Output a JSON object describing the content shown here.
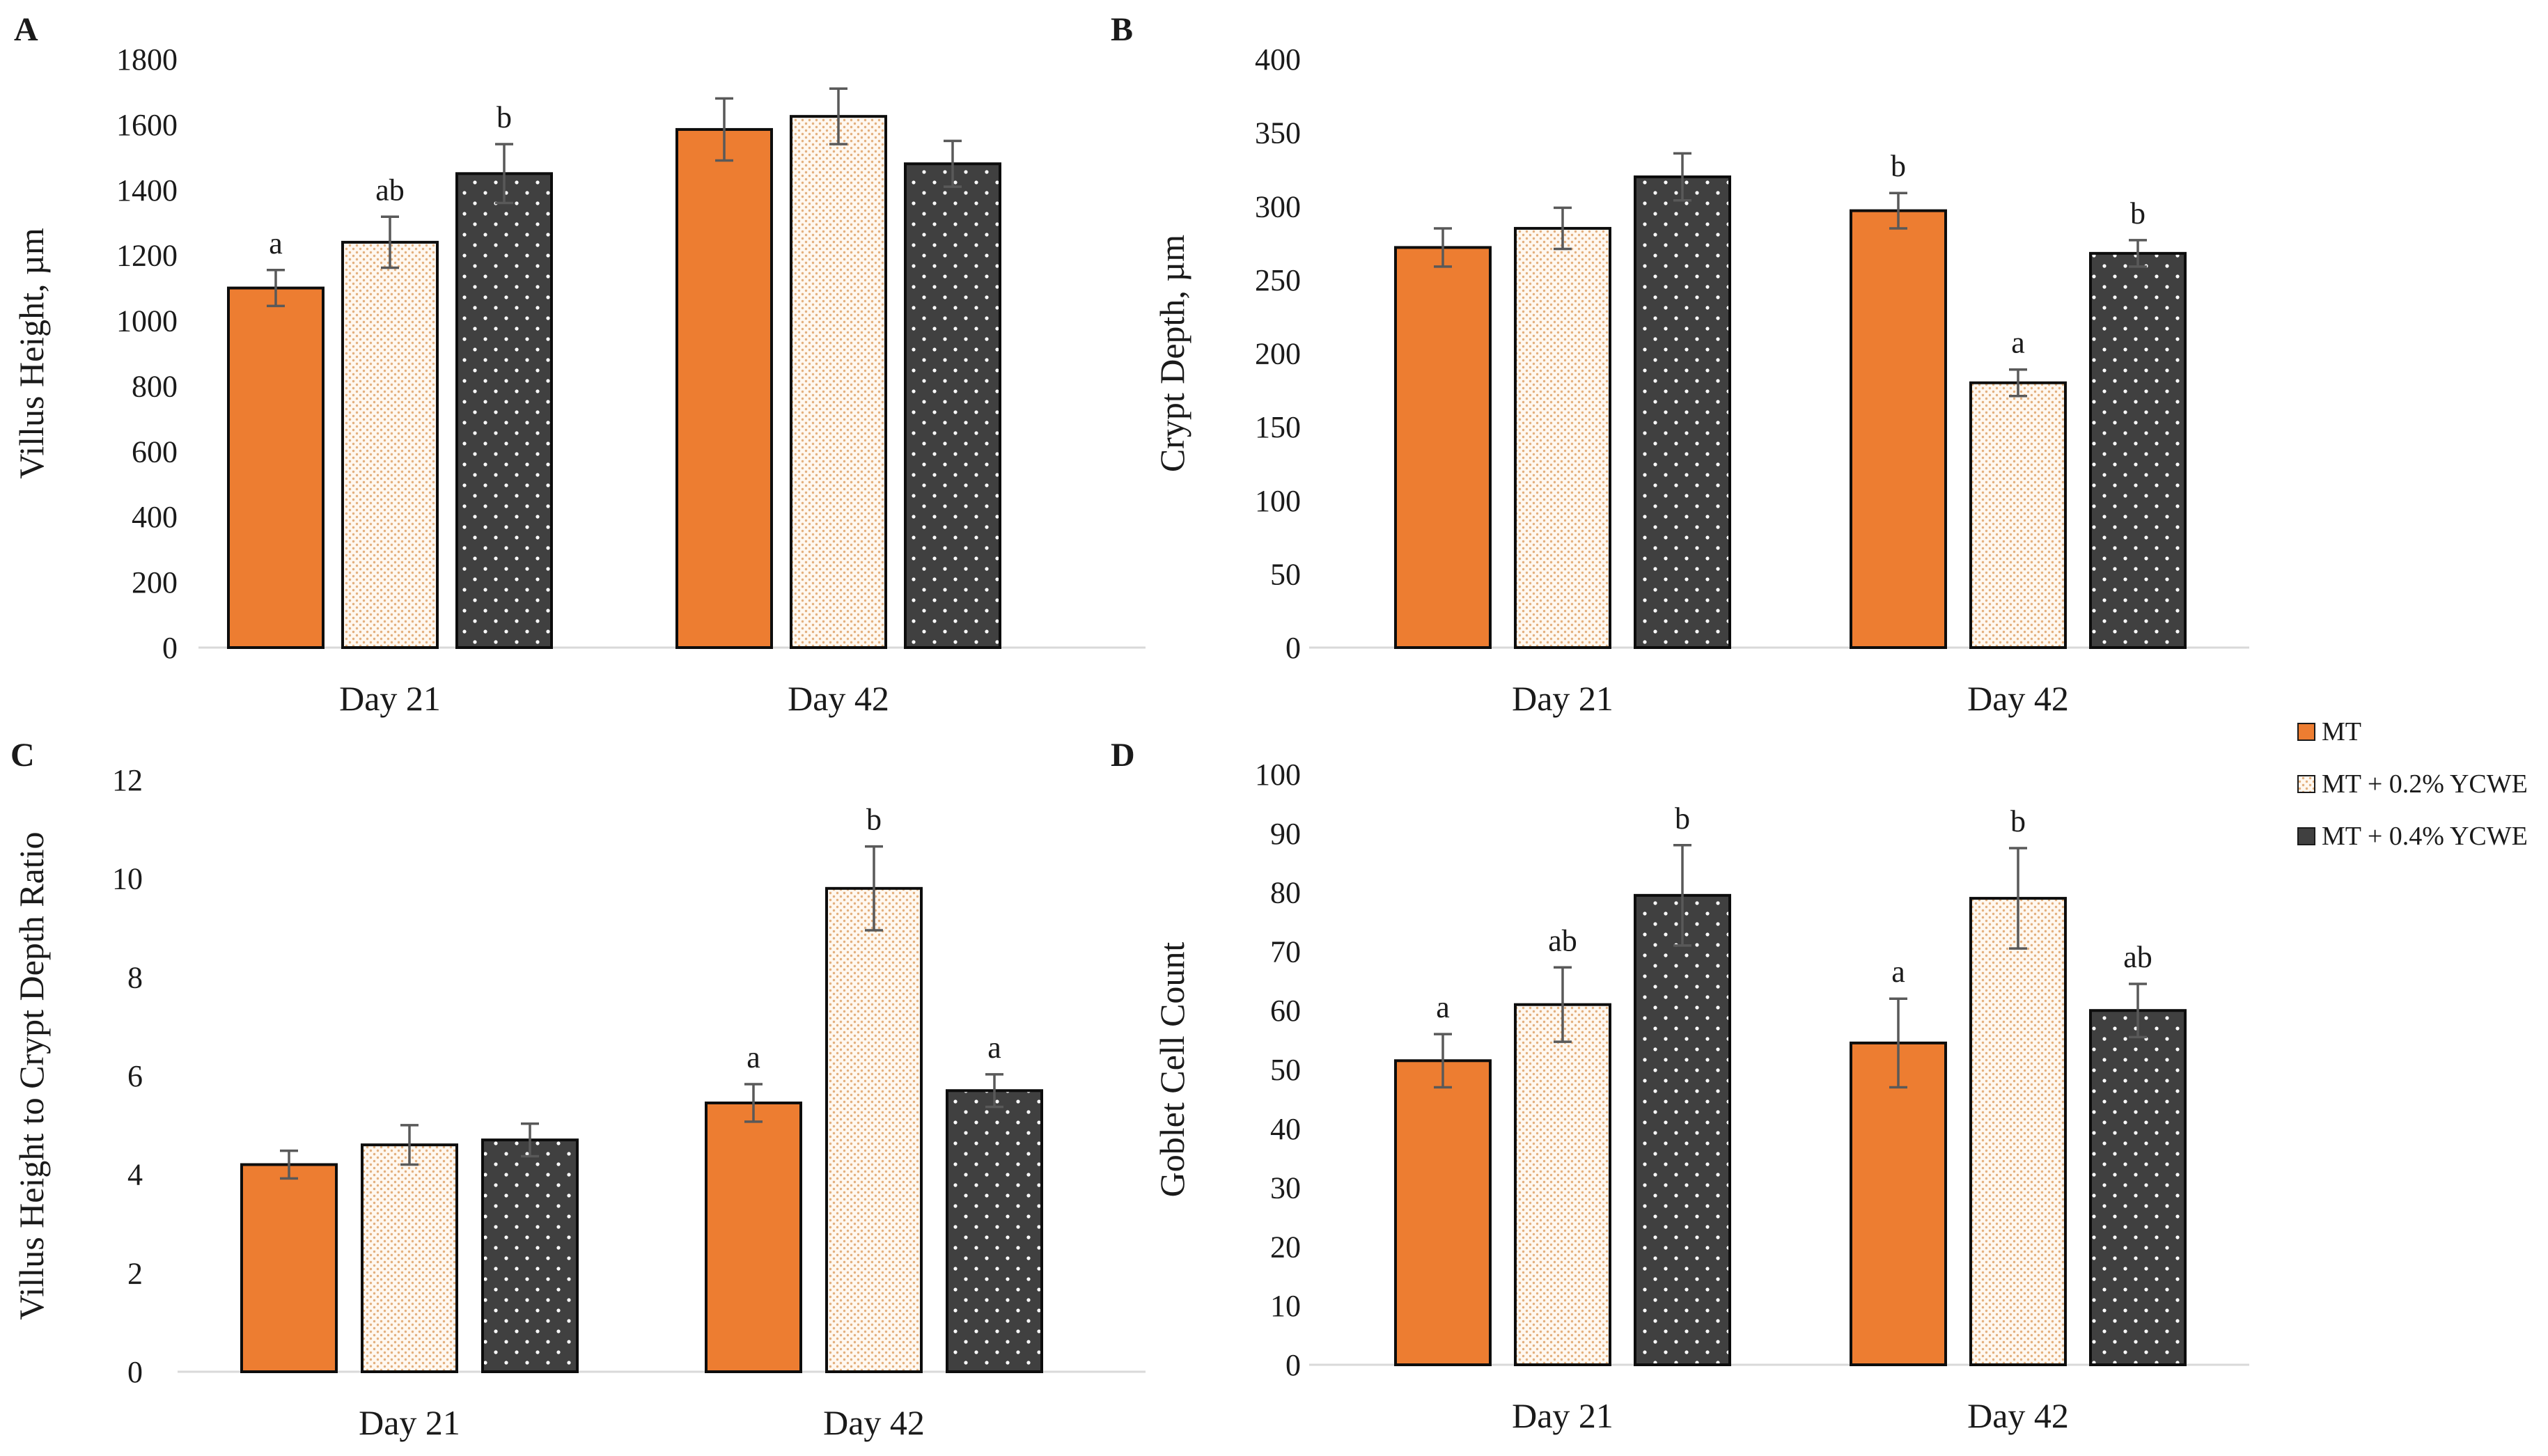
{
  "colors": {
    "mt": "#ED7D31",
    "ycwe02_fill": "#FFF8F0",
    "ycwe02_dot": "#E3B07E",
    "ycwe04": "#404040",
    "axis": "#D9D9D9",
    "error": "#595959"
  },
  "legend": {
    "items": [
      "MT",
      "MT + 0.2% YCWE",
      "MT + 0.4% YCWE"
    ]
  },
  "chart_data": [
    {
      "type": "bar",
      "panel": "A",
      "ylabel": "Villus Height, µm",
      "ylim": [
        0,
        1800
      ],
      "yticks": [
        0,
        200,
        400,
        600,
        800,
        1000,
        1200,
        1400,
        1600,
        1800
      ],
      "categories": [
        "Day 21",
        "Day 42"
      ],
      "series": [
        {
          "name": "MT",
          "values": [
            1100,
            1585
          ],
          "errors": [
            55,
            95
          ],
          "labels": [
            "a",
            ""
          ]
        },
        {
          "name": "MT + 0.2% YCWE",
          "values": [
            1240,
            1625
          ],
          "errors": [
            78,
            85
          ],
          "labels": [
            "ab",
            ""
          ]
        },
        {
          "name": "MT + 0.4% YCWE",
          "values": [
            1450,
            1480
          ],
          "errors": [
            90,
            70
          ],
          "labels": [
            "b",
            ""
          ]
        }
      ]
    },
    {
      "type": "bar",
      "panel": "B",
      "ylabel": "Crypt Depth, µm",
      "ylim": [
        0,
        400
      ],
      "yticks": [
        0,
        50,
        100,
        150,
        200,
        250,
        300,
        350,
        400
      ],
      "categories": [
        "Day 21",
        "Day 42"
      ],
      "series": [
        {
          "name": "MT",
          "values": [
            272,
            297
          ],
          "errors": [
            13,
            12
          ],
          "labels": [
            "",
            "b"
          ]
        },
        {
          "name": "MT + 0.2% YCWE",
          "values": [
            285,
            180
          ],
          "errors": [
            14,
            9
          ],
          "labels": [
            "",
            "a"
          ]
        },
        {
          "name": "MT + 0.4% YCWE",
          "values": [
            320,
            268
          ],
          "errors": [
            16,
            9
          ],
          "labels": [
            "",
            "b"
          ]
        }
      ]
    },
    {
      "type": "bar",
      "panel": "C",
      "ylabel": "Villus Height to Crypt Depth Ratio",
      "ylim": [
        0,
        12
      ],
      "yticks": [
        0,
        2,
        4,
        6,
        8,
        10,
        12
      ],
      "categories": [
        "Day 21",
        "Day 42"
      ],
      "series": [
        {
          "name": "MT",
          "values": [
            4.2,
            5.45
          ],
          "errors": [
            0.28,
            0.38
          ],
          "labels": [
            "",
            "a"
          ]
        },
        {
          "name": "MT + 0.2% YCWE",
          "values": [
            4.6,
            9.8
          ],
          "errors": [
            0.4,
            0.85
          ],
          "labels": [
            "",
            "b"
          ]
        },
        {
          "name": "MT + 0.4% YCWE",
          "values": [
            4.7,
            5.7
          ],
          "errors": [
            0.33,
            0.33
          ],
          "labels": [
            "",
            "a"
          ]
        }
      ]
    },
    {
      "type": "bar",
      "panel": "D",
      "ylabel": "Goblet Cell Count",
      "ylim": [
        0,
        100
      ],
      "yticks": [
        0,
        10,
        20,
        30,
        40,
        50,
        60,
        70,
        80,
        90,
        100
      ],
      "categories": [
        "Day 21",
        "Day 42"
      ],
      "series": [
        {
          "name": "MT",
          "values": [
            51.5,
            54.5
          ],
          "errors": [
            4.5,
            7.5
          ],
          "labels": [
            "a",
            "a"
          ]
        },
        {
          "name": "MT + 0.2% YCWE",
          "values": [
            61,
            79
          ],
          "errors": [
            6.3,
            8.5
          ],
          "labels": [
            "ab",
            "b"
          ]
        },
        {
          "name": "MT + 0.4% YCWE",
          "values": [
            79.5,
            60
          ],
          "errors": [
            8.5,
            4.5
          ],
          "labels": [
            "b",
            "ab"
          ]
        }
      ]
    }
  ]
}
